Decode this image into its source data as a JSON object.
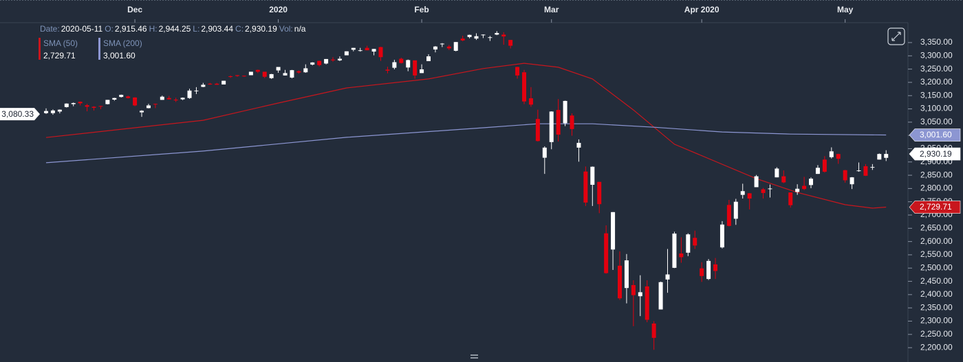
{
  "chart_data": {
    "type": "candlestick",
    "header": [
      {
        "label": "Date:",
        "value": "2020-05-11"
      },
      {
        "label": "O:",
        "value": "2,915.46"
      },
      {
        "label": "H:",
        "value": "2,944.25"
      },
      {
        "label": "L:",
        "value": "2,903.44"
      },
      {
        "label": "C:",
        "value": "2,930.19"
      },
      {
        "label": "Vol:",
        "value": "n/a"
      }
    ],
    "up_color": "#ffffff",
    "down_color": "#e3000f",
    "xlim": [
      -6.75,
      126.2
    ],
    "xticks": [
      {
        "value": 13,
        "label": "Dec"
      },
      {
        "value": 34,
        "label": "2020"
      },
      {
        "value": 55,
        "label": "Feb"
      },
      {
        "value": 74,
        "label": "Mar"
      },
      {
        "value": 96,
        "label": "Apr 2020"
      },
      {
        "value": 117,
        "label": "May"
      }
    ],
    "ylim": [
      2146,
      3425
    ],
    "yticks": [
      {
        "value": 2200,
        "label": "2,200.00"
      },
      {
        "value": 2250,
        "label": "2,250.00"
      },
      {
        "value": 2300,
        "label": "2,300.00"
      },
      {
        "value": 2350,
        "label": "2,350.00"
      },
      {
        "value": 2400,
        "label": "2,400.00"
      },
      {
        "value": 2450,
        "label": "2,450.00"
      },
      {
        "value": 2500,
        "label": "2,500.00"
      },
      {
        "value": 2550,
        "label": "2,550.00"
      },
      {
        "value": 2600,
        "label": "2,600.00"
      },
      {
        "value": 2650,
        "label": "2,650.00"
      },
      {
        "value": 2700,
        "label": "2,700.00"
      },
      {
        "value": 2750,
        "label": "2,750.00"
      },
      {
        "value": 2800,
        "label": "2,800.00"
      },
      {
        "value": 2850,
        "label": "2,850.00"
      },
      {
        "value": 2900,
        "label": "2,900.00"
      },
      {
        "value": 2950,
        "label": "2,950.00"
      },
      {
        "value": 3000,
        "label": "3,000.00"
      },
      {
        "value": 3050,
        "label": "3,050.00"
      },
      {
        "value": 3100,
        "label": "3,100.00"
      },
      {
        "value": 3150,
        "label": "3,150.00"
      },
      {
        "value": 3200,
        "label": "3,200.00"
      },
      {
        "value": 3250,
        "label": "3,250.00"
      },
      {
        "value": 3300,
        "label": "3,300.00"
      },
      {
        "value": 3350,
        "label": "3,350.00"
      }
    ],
    "left_marker": {
      "value": 3080.33,
      "label": "3,080.33"
    },
    "close_marker": {
      "value": 2930.19,
      "label": "2,930.19"
    },
    "indicators": [
      {
        "name": "SMA (50)",
        "label": "2,729.71",
        "color": "#c8161d",
        "marker": 2729.71,
        "x": [
          0,
          23,
          34,
          44,
          56,
          64,
          70,
          75,
          80,
          86,
          92,
          98,
          104,
          110,
          117,
          121,
          123
        ],
        "values": [
          2992,
          3057,
          3122,
          3179,
          3213,
          3252,
          3272,
          3257,
          3213,
          3096,
          2967,
          2902,
          2837,
          2785,
          2739,
          2726,
          2729.71
        ]
      },
      {
        "name": "SMA (200)",
        "label": "3,001.60",
        "color": "#8c96d2",
        "marker": 3001.6,
        "x": [
          0,
          23,
          44,
          64,
          72,
          80,
          89,
          99,
          109,
          123
        ],
        "values": [
          2897,
          2941,
          2993,
          3029,
          3044,
          3044,
          3031,
          3013,
          3005,
          3001.6
        ]
      }
    ],
    "ohlc": [
      [
        3084,
        3102,
        3081,
        3092
      ],
      [
        3084,
        3098,
        3078,
        3094
      ],
      [
        3090,
        3098,
        3083,
        3097
      ],
      [
        3107,
        3121,
        3105,
        3120
      ],
      [
        3118,
        3124,
        3110,
        3122
      ],
      [
        3127,
        3128,
        3113,
        3121
      ],
      [
        3114,
        3119,
        3091,
        3108
      ],
      [
        3108,
        3110,
        3094,
        3104
      ],
      [
        3111,
        3112,
        3099,
        3110
      ],
      [
        3118,
        3134,
        3117,
        3134
      ],
      [
        3135,
        3142,
        3131,
        3141
      ],
      [
        3145,
        3154,
        3143,
        3153
      ],
      [
        3147,
        3150,
        3139,
        3141
      ],
      [
        3143,
        3144,
        3110,
        3113
      ],
      [
        3087,
        3095,
        3070,
        3093
      ],
      [
        3103,
        3119,
        3102,
        3113
      ],
      [
        3119,
        3120,
        3103,
        3117
      ],
      [
        3134,
        3150,
        3134,
        3146
      ],
      [
        3141,
        3149,
        3135,
        3136
      ],
      [
        3135,
        3142,
        3126,
        3132
      ],
      [
        3136,
        3143,
        3133,
        3142
      ],
      [
        3141,
        3176,
        3138,
        3169
      ],
      [
        3167,
        3182,
        3156,
        3169
      ],
      [
        3183,
        3198,
        3182,
        3191
      ],
      [
        3195,
        3198,
        3191,
        3192
      ],
      [
        3195,
        3198,
        3191,
        3191
      ],
      [
        3192,
        3206,
        3192,
        3206
      ],
      [
        3223,
        3226,
        3217,
        3221
      ],
      [
        3227,
        3228,
        3221,
        3224
      ],
      [
        3225,
        3226,
        3221,
        3223
      ],
      [
        3227,
        3240,
        3227,
        3240
      ],
      [
        3247,
        3248,
        3235,
        3240
      ],
      [
        3240,
        3240,
        3216,
        3221
      ],
      [
        3216,
        3232,
        3213,
        3231
      ],
      [
        3245,
        3258,
        3236,
        3258
      ],
      [
        3226,
        3247,
        3226,
        3235
      ],
      [
        3218,
        3247,
        3215,
        3246
      ],
      [
        3242,
        3245,
        3233,
        3237
      ],
      [
        3238,
        3268,
        3236,
        3253
      ],
      [
        3267,
        3276,
        3264,
        3275
      ],
      [
        3281,
        3282,
        3260,
        3265
      ],
      [
        3271,
        3288,
        3268,
        3288
      ],
      [
        3286,
        3295,
        3278,
        3283
      ],
      [
        3283,
        3298,
        3280,
        3289
      ],
      [
        3302,
        3317,
        3302,
        3317
      ],
      [
        3323,
        3330,
        3317,
        3330
      ],
      [
        3321,
        3330,
        3316,
        3321
      ],
      [
        3330,
        3338,
        3321,
        3321
      ],
      [
        3316,
        3326,
        3302,
        3326
      ],
      [
        3333,
        3334,
        3281,
        3295
      ],
      [
        3248,
        3259,
        3234,
        3244
      ],
      [
        3255,
        3285,
        3249,
        3276
      ],
      [
        3289,
        3293,
        3271,
        3273
      ],
      [
        3256,
        3286,
        3242,
        3284
      ],
      [
        3283,
        3283,
        3214,
        3226
      ],
      [
        3235,
        3268,
        3235,
        3249
      ],
      [
        3280,
        3306,
        3280,
        3298
      ],
      [
        3324,
        3337,
        3313,
        3335
      ],
      [
        3344,
        3348,
        3333,
        3346
      ],
      [
        3335,
        3341,
        3322,
        3328
      ],
      [
        3319,
        3352,
        3317,
        3352
      ],
      [
        3365,
        3376,
        3355,
        3358
      ],
      [
        3371,
        3380,
        3366,
        3379
      ],
      [
        3365,
        3385,
        3360,
        3374
      ],
      [
        3379,
        3381,
        3367,
        3380
      ],
      [
        3369,
        3375,
        3356,
        3370
      ],
      [
        3380,
        3393,
        3378,
        3386
      ],
      [
        3380,
        3389,
        3342,
        3373
      ],
      [
        3360,
        3360,
        3328,
        3338
      ],
      [
        3258,
        3259,
        3214,
        3226
      ],
      [
        3238,
        3247,
        3118,
        3128
      ],
      [
        3140,
        3182,
        3108,
        3116
      ],
      [
        3062,
        3097,
        2977,
        2979
      ],
      [
        2916,
        2959,
        2855,
        2954
      ],
      [
        2975,
        3091,
        2948,
        3090
      ],
      [
        3096,
        3137,
        2977,
        3003
      ],
      [
        3046,
        3131,
        3035,
        3130
      ],
      [
        3075,
        3083,
        2999,
        3024
      ],
      [
        2954,
        2985,
        2901,
        2972
      ],
      [
        2864,
        2883,
        2734,
        2747
      ],
      [
        2814,
        2883,
        2734,
        2882
      ],
      [
        2825,
        2825,
        2707,
        2741
      ],
      [
        2631,
        2661,
        2479,
        2481
      ],
      [
        2570,
        2711,
        2493,
        2711
      ],
      [
        2509,
        2563,
        2380,
        2386
      ],
      [
        2425,
        2553,
        2367,
        2529
      ],
      [
        2436,
        2454,
        2281,
        2398
      ],
      [
        2394,
        2473,
        2319,
        2409
      ],
      [
        2431,
        2454,
        2296,
        2305
      ],
      [
        2291,
        2300,
        2192,
        2237
      ],
      [
        2344,
        2449,
        2344,
        2447
      ],
      [
        2457,
        2572,
        2407,
        2476
      ],
      [
        2501,
        2637,
        2500,
        2630
      ],
      [
        2555,
        2616,
        2520,
        2541
      ],
      [
        2558,
        2631,
        2545,
        2627
      ],
      [
        2614,
        2641,
        2572,
        2585
      ],
      [
        2499,
        2522,
        2448,
        2470
      ],
      [
        2459,
        2534,
        2455,
        2527
      ],
      [
        2514,
        2538,
        2459,
        2489
      ],
      [
        2578,
        2677,
        2574,
        2664
      ],
      [
        2738,
        2757,
        2657,
        2659
      ],
      [
        2686,
        2761,
        2663,
        2750
      ],
      [
        2776,
        2818,
        2762,
        2790
      ],
      [
        2782,
        2783,
        2721,
        2762
      ],
      [
        2805,
        2851,
        2805,
        2846
      ],
      [
        2797,
        2802,
        2762,
        2783
      ],
      [
        2799,
        2815,
        2766,
        2800
      ],
      [
        2842,
        2880,
        2842,
        2875
      ],
      [
        2846,
        2868,
        2820,
        2823
      ],
      [
        2785,
        2785,
        2728,
        2737
      ],
      [
        2787,
        2816,
        2776,
        2799
      ],
      [
        2810,
        2844,
        2794,
        2798
      ],
      [
        2813,
        2842,
        2801,
        2837
      ],
      [
        2855,
        2888,
        2855,
        2878
      ],
      [
        2909,
        2922,
        2860,
        2863
      ],
      [
        2918,
        2955,
        2913,
        2940
      ],
      [
        2930,
        2931,
        2893,
        2912
      ],
      [
        2869,
        2870,
        2822,
        2831
      ],
      [
        2816,
        2843,
        2798,
        2842
      ],
      [
        2868,
        2898,
        2863,
        2868
      ],
      [
        2884,
        2892,
        2847,
        2848
      ],
      [
        2879,
        2892,
        2870,
        2881
      ],
      [
        2909,
        2932,
        2909,
        2930
      ],
      [
        2915.46,
        2944.25,
        2903.44,
        2930.19
      ]
    ]
  }
}
